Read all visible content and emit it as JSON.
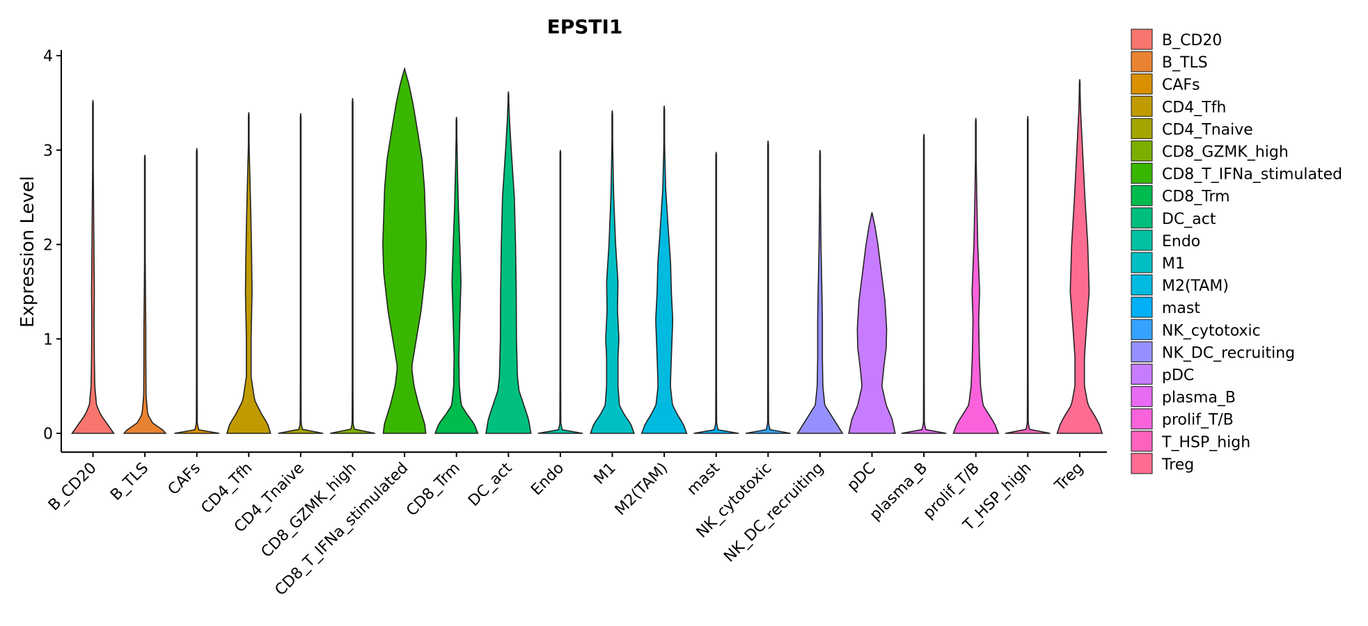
{
  "chart_data": {
    "type": "violin",
    "title": "EPSTI1",
    "xlabel": "",
    "ylabel": "Expression Level",
    "ylim": [
      0,
      4.05
    ],
    "yticks": [
      "0",
      "1",
      "2",
      "3",
      "4"
    ],
    "legend_position": "right",
    "categories": [
      "B_CD20",
      "B_TLS",
      "CAFs",
      "CD4_Tfh",
      "CD4_Tnaive",
      "CD8_GZMK_high",
      "CD8_T_IFNa_stimulated",
      "CD8_Trm",
      "DC_act",
      "Endo",
      "M1",
      "M2(TAM)",
      "mast",
      "NK_cytotoxic",
      "NK_DC_recruiting",
      "pDC",
      "plasma_B",
      "prolif_T/B",
      "T_HSP_high",
      "Treg"
    ],
    "colors": [
      "#F8766D",
      "#EA8331",
      "#D89000",
      "#C09B00",
      "#A3A500",
      "#7CAE00",
      "#39B600",
      "#00BB4E",
      "#00BF7D",
      "#00C1A3",
      "#00BFC4",
      "#00BAE0",
      "#00B0F6",
      "#35A2FF",
      "#9590FF",
      "#C77CFF",
      "#E76BF3",
      "#FA62DB",
      "#FF62BC",
      "#FF6C91"
    ],
    "max_values": [
      3.53,
      2.95,
      3.02,
      3.4,
      3.39,
      3.55,
      3.86,
      3.35,
      3.62,
      3.0,
      3.42,
      3.47,
      2.98,
      3.1,
      3.0,
      2.34,
      3.17,
      3.34,
      3.36,
      3.75
    ],
    "density_profiles": [
      [
        [
          0,
          0.88
        ],
        [
          0.1,
          0.6
        ],
        [
          0.2,
          0.32
        ],
        [
          0.3,
          0.15
        ],
        [
          0.5,
          0.08
        ],
        [
          0.8,
          0.06
        ],
        [
          1.2,
          0.05
        ],
        [
          1.5,
          0.06
        ],
        [
          2.0,
          0.04
        ],
        [
          2.5,
          0.025
        ],
        [
          3.0,
          0.008
        ],
        [
          3.53,
          0
        ]
      ],
      [
        [
          0,
          0.88
        ],
        [
          0.05,
          0.7
        ],
        [
          0.1,
          0.35
        ],
        [
          0.2,
          0.12
        ],
        [
          0.4,
          0.05
        ],
        [
          0.8,
          0.04
        ],
        [
          1.1,
          0.04
        ],
        [
          1.5,
          0.025
        ],
        [
          2.0,
          0.01
        ],
        [
          2.95,
          0
        ]
      ],
      [
        [
          0,
          0.95
        ],
        [
          0.02,
          0.1
        ],
        [
          0.1,
          0.02
        ],
        [
          1.0,
          0.01
        ],
        [
          3.02,
          0
        ]
      ],
      [
        [
          0,
          0.92
        ],
        [
          0.1,
          0.8
        ],
        [
          0.2,
          0.55
        ],
        [
          0.35,
          0.25
        ],
        [
          0.6,
          0.1
        ],
        [
          1.0,
          0.1
        ],
        [
          1.5,
          0.14
        ],
        [
          1.9,
          0.12
        ],
        [
          2.3,
          0.09
        ],
        [
          2.6,
          0.06
        ],
        [
          3.0,
          0.02
        ],
        [
          3.4,
          0
        ]
      ],
      [
        [
          0,
          0.95
        ],
        [
          0.02,
          0.1
        ],
        [
          0.1,
          0.02
        ],
        [
          1.0,
          0.01
        ],
        [
          3.39,
          0
        ]
      ],
      [
        [
          0,
          0.95
        ],
        [
          0.02,
          0.1
        ],
        [
          0.1,
          0.02
        ],
        [
          1.0,
          0.01
        ],
        [
          3.55,
          0
        ]
      ],
      [
        [
          0,
          0.9
        ],
        [
          0.1,
          0.85
        ],
        [
          0.3,
          0.6
        ],
        [
          0.5,
          0.4
        ],
        [
          0.7,
          0.3
        ],
        [
          1.0,
          0.5
        ],
        [
          1.3,
          0.7
        ],
        [
          1.7,
          0.88
        ],
        [
          2.0,
          0.92
        ],
        [
          2.3,
          0.88
        ],
        [
          2.6,
          0.84
        ],
        [
          2.9,
          0.74
        ],
        [
          3.2,
          0.55
        ],
        [
          3.5,
          0.35
        ],
        [
          3.7,
          0.18
        ],
        [
          3.86,
          0
        ]
      ],
      [
        [
          0,
          0.9
        ],
        [
          0.1,
          0.75
        ],
        [
          0.2,
          0.45
        ],
        [
          0.3,
          0.2
        ],
        [
          0.5,
          0.12
        ],
        [
          0.8,
          0.1
        ],
        [
          1.2,
          0.14
        ],
        [
          1.6,
          0.19
        ],
        [
          2.0,
          0.14
        ],
        [
          2.4,
          0.08
        ],
        [
          2.8,
          0.04
        ],
        [
          3.35,
          0
        ]
      ],
      [
        [
          0,
          0.95
        ],
        [
          0.15,
          0.85
        ],
        [
          0.3,
          0.65
        ],
        [
          0.45,
          0.45
        ],
        [
          0.6,
          0.38
        ],
        [
          1.0,
          0.34
        ],
        [
          1.5,
          0.33
        ],
        [
          2.0,
          0.3
        ],
        [
          2.5,
          0.25
        ],
        [
          3.0,
          0.12
        ],
        [
          3.3,
          0.05
        ],
        [
          3.62,
          0
        ]
      ],
      [
        [
          0,
          0.95
        ],
        [
          0.02,
          0.1
        ],
        [
          0.1,
          0.02
        ],
        [
          1.0,
          0.01
        ],
        [
          3.0,
          0
        ]
      ],
      [
        [
          0,
          0.92
        ],
        [
          0.1,
          0.78
        ],
        [
          0.2,
          0.5
        ],
        [
          0.3,
          0.3
        ],
        [
          0.5,
          0.24
        ],
        [
          0.8,
          0.24
        ],
        [
          1.0,
          0.28
        ],
        [
          1.3,
          0.22
        ],
        [
          1.6,
          0.24
        ],
        [
          2.0,
          0.14
        ],
        [
          2.5,
          0.06
        ],
        [
          3.0,
          0.02
        ],
        [
          3.42,
          0
        ]
      ],
      [
        [
          0,
          0.95
        ],
        [
          0.1,
          0.8
        ],
        [
          0.2,
          0.55
        ],
        [
          0.3,
          0.35
        ],
        [
          0.5,
          0.26
        ],
        [
          0.8,
          0.3
        ],
        [
          1.2,
          0.36
        ],
        [
          1.5,
          0.3
        ],
        [
          1.8,
          0.27
        ],
        [
          2.2,
          0.16
        ],
        [
          2.6,
          0.06
        ],
        [
          3.0,
          0.02
        ],
        [
          3.47,
          0
        ]
      ],
      [
        [
          0,
          0.95
        ],
        [
          0.02,
          0.1
        ],
        [
          0.1,
          0.02
        ],
        [
          1.0,
          0.01
        ],
        [
          2.98,
          0
        ]
      ],
      [
        [
          0,
          0.95
        ],
        [
          0.02,
          0.1
        ],
        [
          0.1,
          0.02
        ],
        [
          1.0,
          0.01
        ],
        [
          3.1,
          0
        ]
      ],
      [
        [
          0,
          0.95
        ],
        [
          0.1,
          0.7
        ],
        [
          0.2,
          0.45
        ],
        [
          0.3,
          0.2
        ],
        [
          0.5,
          0.12
        ],
        [
          0.8,
          0.1
        ],
        [
          1.2,
          0.1
        ],
        [
          1.5,
          0.08
        ],
        [
          2.0,
          0.04
        ],
        [
          2.5,
          0.02
        ],
        [
          3.0,
          0
        ]
      ],
      [
        [
          0,
          0.98
        ],
        [
          0.15,
          0.85
        ],
        [
          0.3,
          0.6
        ],
        [
          0.5,
          0.42
        ],
        [
          0.7,
          0.5
        ],
        [
          0.9,
          0.6
        ],
        [
          1.1,
          0.62
        ],
        [
          1.4,
          0.55
        ],
        [
          1.7,
          0.4
        ],
        [
          2.0,
          0.25
        ],
        [
          2.2,
          0.12
        ],
        [
          2.34,
          0
        ]
      ],
      [
        [
          0,
          0.95
        ],
        [
          0.02,
          0.1
        ],
        [
          0.1,
          0.02
        ],
        [
          1.0,
          0.01
        ],
        [
          3.17,
          0
        ]
      ],
      [
        [
          0,
          0.95
        ],
        [
          0.1,
          0.8
        ],
        [
          0.2,
          0.55
        ],
        [
          0.3,
          0.3
        ],
        [
          0.5,
          0.2
        ],
        [
          0.8,
          0.15
        ],
        [
          1.2,
          0.12
        ],
        [
          1.5,
          0.16
        ],
        [
          2.0,
          0.08
        ],
        [
          2.5,
          0.04
        ],
        [
          3.0,
          0.01
        ],
        [
          3.34,
          0
        ]
      ],
      [
        [
          0,
          0.95
        ],
        [
          0.02,
          0.1
        ],
        [
          0.1,
          0.02
        ],
        [
          1.0,
          0.01
        ],
        [
          3.36,
          0
        ]
      ],
      [
        [
          0,
          0.95
        ],
        [
          0.1,
          0.82
        ],
        [
          0.2,
          0.6
        ],
        [
          0.3,
          0.35
        ],
        [
          0.5,
          0.2
        ],
        [
          0.8,
          0.2
        ],
        [
          1.1,
          0.28
        ],
        [
          1.5,
          0.4
        ],
        [
          2.0,
          0.34
        ],
        [
          2.5,
          0.22
        ],
        [
          3.0,
          0.12
        ],
        [
          3.4,
          0.04
        ],
        [
          3.75,
          0
        ]
      ]
    ]
  }
}
